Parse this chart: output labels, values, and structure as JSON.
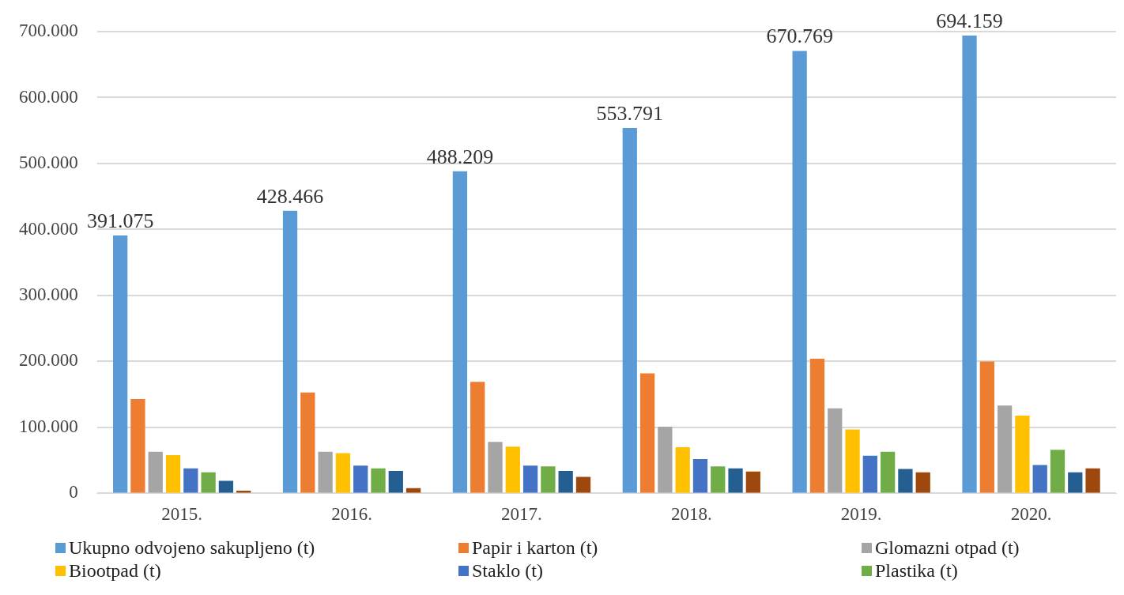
{
  "chart_data": {
    "type": "bar",
    "categories": [
      "2015.",
      "2016.",
      "2017.",
      "2018.",
      "2019.",
      "2020."
    ],
    "series": [
      {
        "name": "Ukupno odvojeno sakupljeno (t)",
        "color": "#5b9bd5",
        "values": [
          391075,
          428466,
          488209,
          553791,
          670769,
          694159
        ],
        "value_labels": [
          "391.075",
          "428.466",
          "488.209",
          "553.791",
          "670.769",
          "694.159"
        ]
      },
      {
        "name": "Papir i karton (t)",
        "color": "#ed7d31",
        "values": [
          143000,
          153000,
          169000,
          182000,
          204000,
          200000
        ]
      },
      {
        "name": "Glomazni otpad (t)",
        "color": "#a5a5a5",
        "values": [
          63000,
          63000,
          78000,
          101000,
          129000,
          133000
        ]
      },
      {
        "name": "Biootpad (t)",
        "color": "#ffc000",
        "values": [
          58000,
          61000,
          71000,
          70000,
          97000,
          118000
        ]
      },
      {
        "name": "Staklo (t)",
        "color": "#4472c4",
        "values": [
          38000,
          42000,
          42000,
          52000,
          57000,
          43000
        ]
      },
      {
        "name": "Plastika (t)",
        "color": "#70ad47",
        "values": [
          32000,
          38000,
          41000,
          41000,
          63000,
          66000
        ]
      },
      {
        "color": "#255e91",
        "values": [
          19000,
          34000,
          34000,
          38000,
          37000,
          32000
        ]
      },
      {
        "color": "#9e480e",
        "values": [
          4000,
          8000,
          25000,
          33000,
          32000,
          38000
        ]
      }
    ],
    "ylim": [
      0,
      700000
    ],
    "yticks": [
      {
        "value": 0,
        "label": "0"
      },
      {
        "value": 100000,
        "label": "100.000"
      },
      {
        "value": 200000,
        "label": "200.000"
      },
      {
        "value": 300000,
        "label": "300.000"
      },
      {
        "value": 400000,
        "label": "400.000"
      },
      {
        "value": 500000,
        "label": "500.000"
      },
      {
        "value": 600000,
        "label": "600.000"
      },
      {
        "value": 700000,
        "label": "700.000"
      }
    ],
    "grid": "y",
    "legend": "bottom"
  }
}
